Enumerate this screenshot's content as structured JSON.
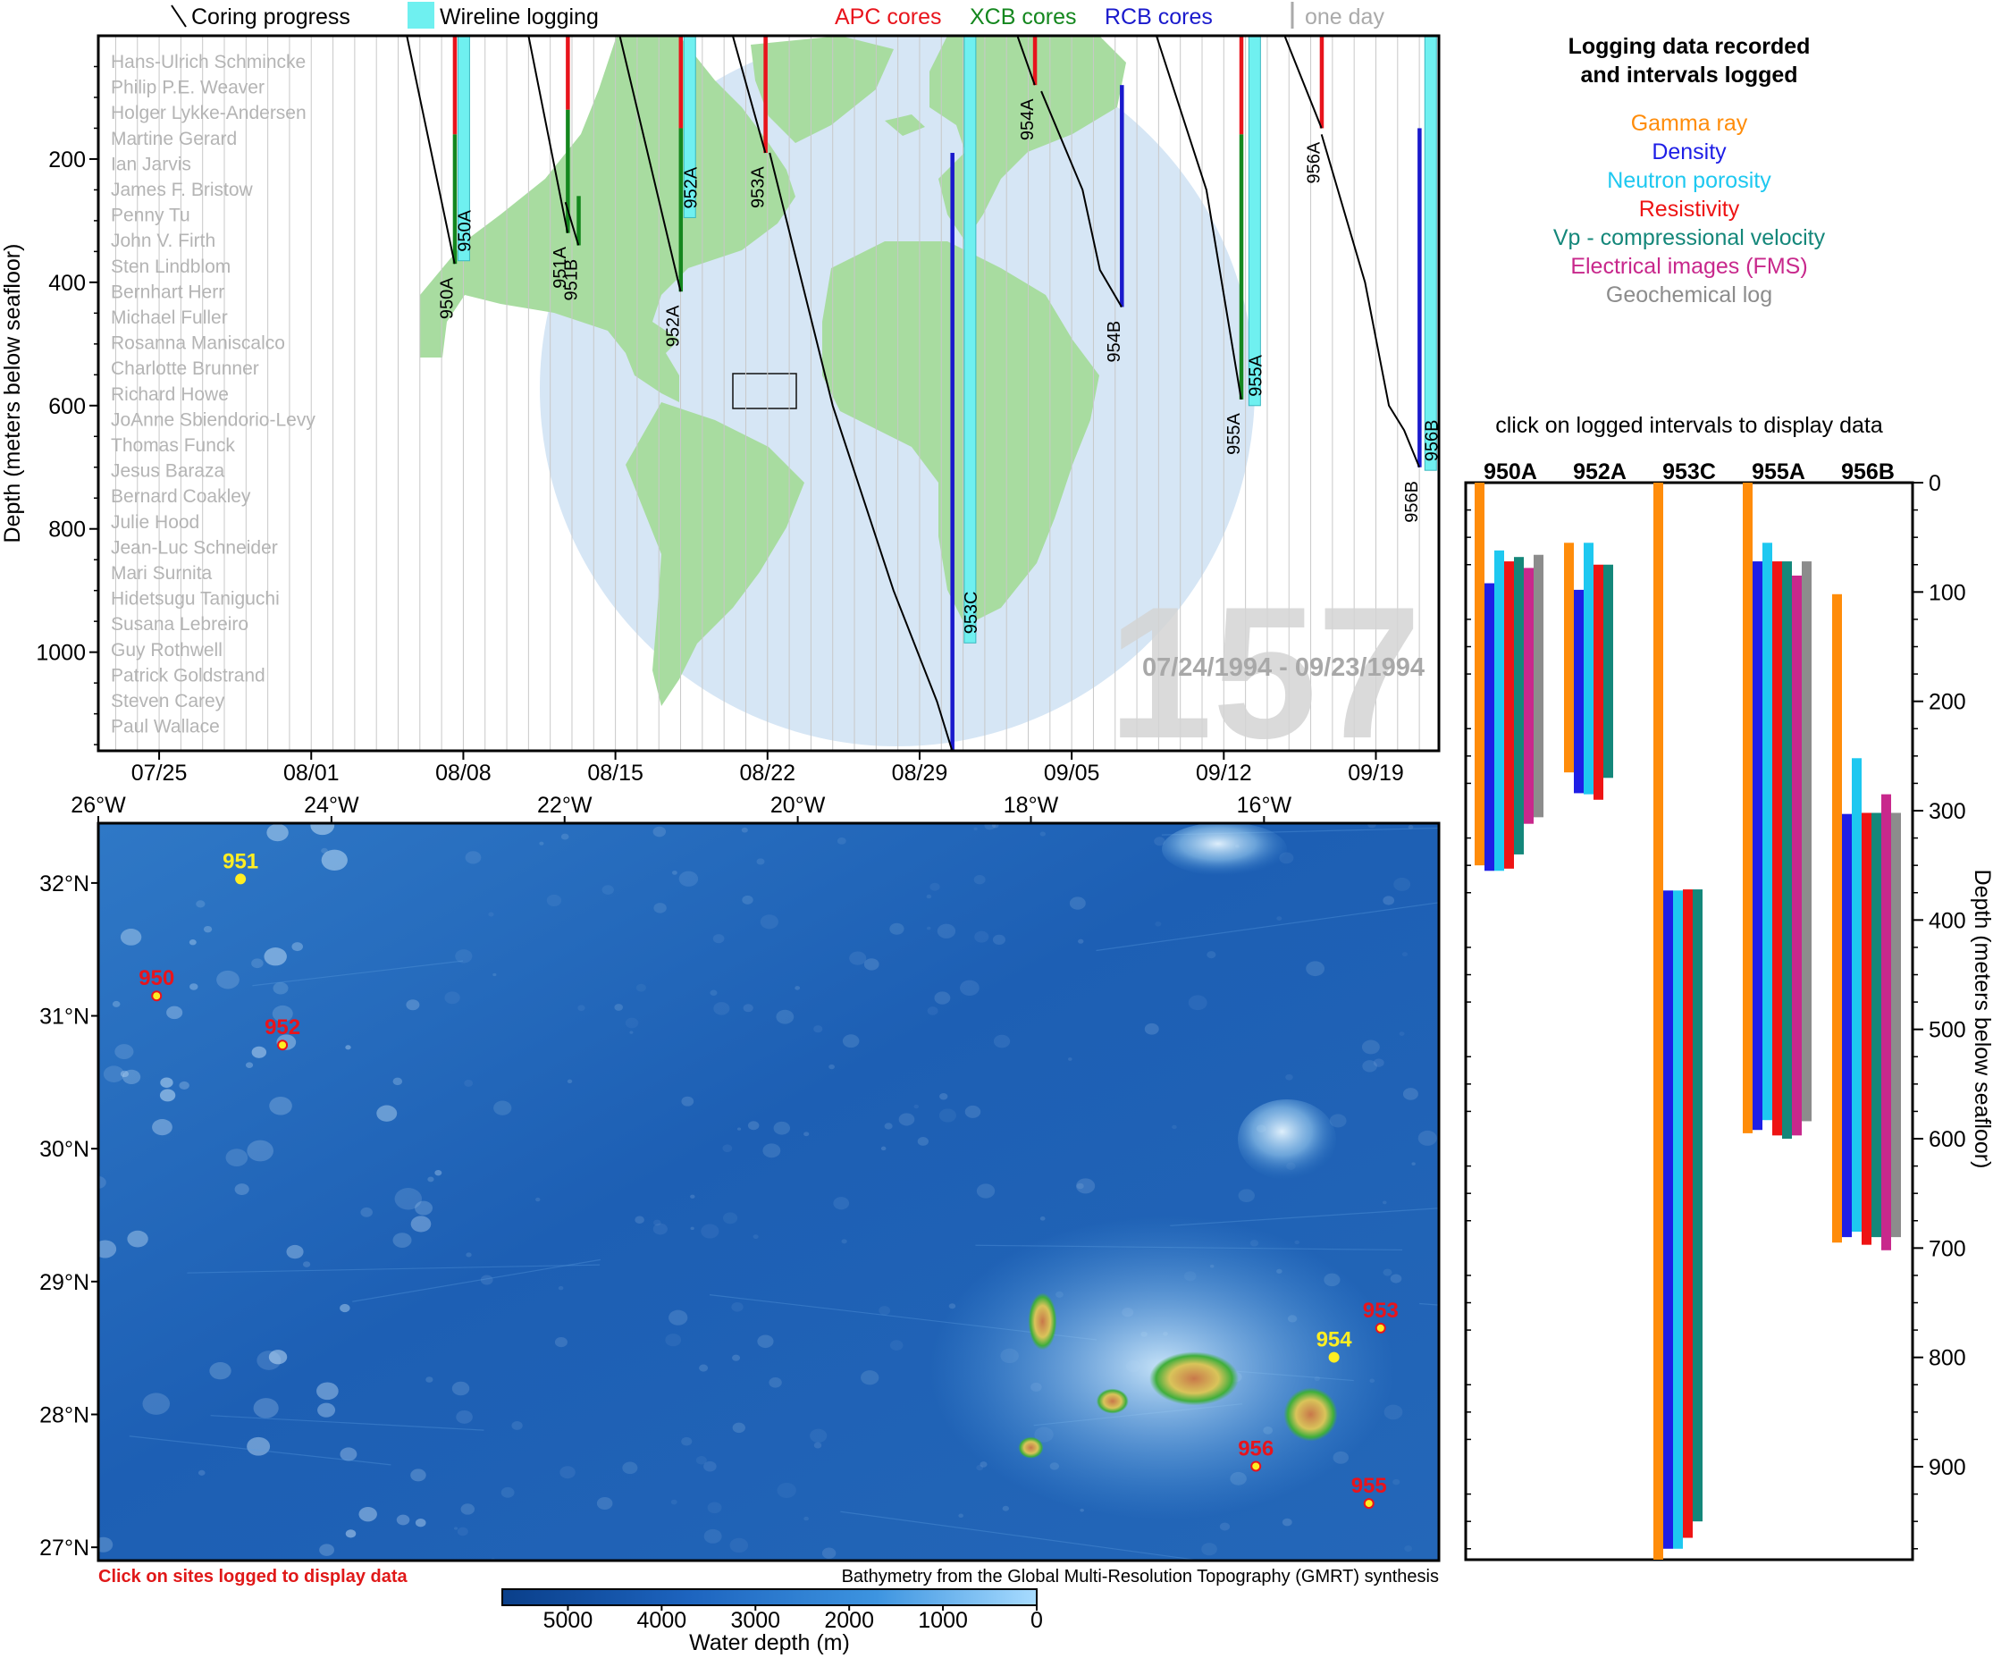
{
  "legend": {
    "coring_progress": "Coring progress",
    "wireline_logging": "Wireline logging",
    "apc": "APC cores",
    "xcb": "XCB cores",
    "rcb": "RCB cores",
    "one_day": "one day"
  },
  "colors": {
    "apc": "#e8141c",
    "xcb": "#14871e",
    "rcb": "#1a1acc",
    "wireline": "#6ff0f0",
    "land": "#a8dca0",
    "ocean_globe": "#d6e6f5",
    "gamma": "#ff8c0a",
    "density": "#1e1ee6",
    "neutron": "#1ec8f0",
    "resistivity": "#ee1414",
    "vp": "#14877a",
    "fms": "#c8288c",
    "geochem": "#8c8c8c"
  },
  "expedition": {
    "number": "157",
    "dates": "07/24/1994 - 09/23/1994",
    "scientists": [
      "Hans-Ulrich Schmincke",
      "Philip P.E. Weaver",
      "Holger Lykke-Andersen",
      "Martine Gerard",
      "Ian Jarvis",
      "James F. Bristow",
      "Penny Tu",
      "John V. Firth",
      "Sten Lindblom",
      "Bernhart Herr",
      "Michael Fuller",
      "Rosanna Maniscalco",
      "Charlotte Brunner",
      "Richard Howe",
      "JoAnne Sbiendorio-Levy",
      "Thomas Funck",
      "Jesus Baraza",
      "Bernard Coakley",
      "Julie Hood",
      "Jean-Luc Schneider",
      "Mari Surnita",
      "Hidetsugu Taniguchi",
      "Susana Lebreiro",
      "Guy Rothwell",
      "Patrick Goldstrand",
      "Steven Carey",
      "Paul Wallace"
    ]
  },
  "chart_data": [
    {
      "type": "line",
      "id": "coring-timeline",
      "ylabel": "Depth (meters below seafloor)",
      "ylim": [
        1160,
        0
      ],
      "y_ticks": [
        200,
        400,
        600,
        800,
        1000
      ],
      "x_ticks": [
        "07/25",
        "08/01",
        "08/08",
        "08/15",
        "08/22",
        "08/29",
        "09/05",
        "09/12",
        "09/19"
      ],
      "x_day_range": [
        -1.8,
        59.9
      ],
      "series": [
        {
          "name": "950A",
          "x": [
            12.4,
            14.6
          ],
          "y": [
            0,
            370
          ]
        },
        {
          "name": "951A",
          "x": [
            18.0,
            19.8
          ],
          "y": [
            0,
            320
          ]
        },
        {
          "name": "951B",
          "x": [
            19.7,
            20.3
          ],
          "y": [
            270,
            340
          ]
        },
        {
          "name": "952A",
          "x": [
            22.2,
            25.0
          ],
          "y": [
            0,
            415
          ]
        },
        {
          "name": "953A",
          "x": [
            27.4,
            28.9
          ],
          "y": [
            0,
            190
          ]
        },
        {
          "name": "953C",
          "x": [
            29.1,
            32.0,
            34.8,
            36.8,
            37.5
          ],
          "y": [
            190,
            600,
            900,
            1080,
            1160
          ]
        },
        {
          "name": "954A",
          "x": [
            40.5,
            41.3
          ],
          "y": [
            0,
            80
          ]
        },
        {
          "name": "954B",
          "x": [
            41.6,
            43.5,
            44.3,
            45.3
          ],
          "y": [
            90,
            250,
            380,
            440
          ]
        },
        {
          "name": "955A",
          "x": [
            46.9,
            49.2,
            50.8
          ],
          "y": [
            0,
            250,
            590
          ]
        },
        {
          "name": "956A",
          "x": [
            52.8,
            54.5
          ],
          "y": [
            0,
            150
          ]
        },
        {
          "name": "956B",
          "x": [
            54.5,
            56.5,
            57.6,
            58.3,
            59.0
          ],
          "y": [
            160,
            400,
            600,
            640,
            700
          ]
        }
      ],
      "core_bars": [
        {
          "label": "950A",
          "day": 14.6,
          "segments": [
            {
              "type": "apc",
              "from": 0,
              "to": 160
            },
            {
              "type": "xcb",
              "from": 160,
              "to": 370
            }
          ]
        },
        {
          "label": "951A",
          "day": 19.8,
          "segments": [
            {
              "type": "apc",
              "from": 0,
              "to": 120
            },
            {
              "type": "xcb",
              "from": 120,
              "to": 320
            }
          ]
        },
        {
          "label": "951B",
          "day": 20.3,
          "segments": [
            {
              "type": "xcb",
              "from": 260,
              "to": 340
            }
          ]
        },
        {
          "label": "952A",
          "day": 25.0,
          "segments": [
            {
              "type": "apc",
              "from": 0,
              "to": 150
            },
            {
              "type": "xcb",
              "from": 150,
              "to": 415
            }
          ]
        },
        {
          "label": "953A",
          "day": 28.9,
          "segments": [
            {
              "type": "apc",
              "from": 0,
              "to": 190
            }
          ]
        },
        {
          "label": "953C",
          "day": 37.5,
          "segments": [
            {
              "type": "rcb",
              "from": 190,
              "to": 1160
            }
          ]
        },
        {
          "label": "954A",
          "day": 41.3,
          "segments": [
            {
              "type": "apc",
              "from": 0,
              "to": 80
            }
          ]
        },
        {
          "label": "954B",
          "day": 45.3,
          "segments": [
            {
              "type": "rcb",
              "from": 80,
              "to": 440
            }
          ]
        },
        {
          "label": "955A",
          "day": 50.8,
          "segments": [
            {
              "type": "apc",
              "from": 0,
              "to": 160
            },
            {
              "type": "xcb",
              "from": 160,
              "to": 590
            }
          ]
        },
        {
          "label": "956A",
          "day": 54.5,
          "segments": [
            {
              "type": "apc",
              "from": 0,
              "to": 150
            }
          ]
        },
        {
          "label": "956B",
          "day": 59.0,
          "segments": [
            {
              "type": "rcb",
              "from": 150,
              "to": 700
            }
          ]
        }
      ],
      "wireline_bars": [
        {
          "label": "950A",
          "day": 15.0,
          "from": 0,
          "to": 365
        },
        {
          "label": "952A",
          "day": 25.4,
          "from": 0,
          "to": 295
        },
        {
          "label": "953C",
          "day": 38.3,
          "from": 0,
          "to": 985
        },
        {
          "label": "955A",
          "day": 51.4,
          "from": 0,
          "to": 600
        },
        {
          "label": "956B",
          "day": 59.5,
          "from": 0,
          "to": 705
        }
      ]
    },
    {
      "type": "bar",
      "id": "logged-intervals",
      "title": "Logging data recorded\nand intervals logged",
      "legend": [
        "Gamma ray",
        "Density",
        "Neutron porosity",
        "Resistivity",
        "Vp - compressional velocity",
        "Electrical images (FMS)",
        "Geochemical log"
      ],
      "hint": "click on logged intervals to display data",
      "ylabel": "Depth (meters below seafloor)",
      "ylim": [
        0,
        985
      ],
      "y_ticks": [
        0,
        100,
        200,
        300,
        400,
        500,
        600,
        700,
        800,
        900
      ],
      "holes": [
        {
          "name": "950A",
          "logs": [
            {
              "log": "gamma",
              "top": 0,
              "bottom": 350
            },
            {
              "log": "density",
              "top": 92,
              "bottom": 355
            },
            {
              "log": "neutron",
              "top": 62,
              "bottom": 355
            },
            {
              "log": "resistivity",
              "top": 72,
              "bottom": 353
            },
            {
              "log": "vp",
              "top": 68,
              "bottom": 340
            },
            {
              "log": "fms",
              "top": 78,
              "bottom": 312
            },
            {
              "log": "geochem",
              "top": 66,
              "bottom": 306
            }
          ]
        },
        {
          "name": "952A",
          "logs": [
            {
              "log": "gamma",
              "top": 55,
              "bottom": 265
            },
            {
              "log": "density",
              "top": 98,
              "bottom": 284
            },
            {
              "log": "neutron",
              "top": 55,
              "bottom": 285
            },
            {
              "log": "resistivity",
              "top": 75,
              "bottom": 290
            },
            {
              "log": "vp",
              "top": 75,
              "bottom": 270
            }
          ]
        },
        {
          "name": "953C",
          "logs": [
            {
              "log": "gamma",
              "top": 0,
              "bottom": 985
            },
            {
              "log": "density",
              "top": 373,
              "bottom": 975
            },
            {
              "log": "neutron",
              "top": 373,
              "bottom": 975
            },
            {
              "log": "resistivity",
              "top": 372,
              "bottom": 965
            },
            {
              "log": "vp",
              "top": 372,
              "bottom": 950
            }
          ]
        },
        {
          "name": "955A",
          "logs": [
            {
              "log": "gamma",
              "top": 0,
              "bottom": 595
            },
            {
              "log": "density",
              "top": 72,
              "bottom": 592
            },
            {
              "log": "neutron",
              "top": 55,
              "bottom": 583
            },
            {
              "log": "resistivity",
              "top": 72,
              "bottom": 597
            },
            {
              "log": "vp",
              "top": 72,
              "bottom": 600
            },
            {
              "log": "fms",
              "top": 85,
              "bottom": 597
            },
            {
              "log": "geochem",
              "top": 72,
              "bottom": 584
            }
          ]
        },
        {
          "name": "956B",
          "logs": [
            {
              "log": "gamma",
              "top": 102,
              "bottom": 695
            },
            {
              "log": "density",
              "top": 303,
              "bottom": 690
            },
            {
              "log": "neutron",
              "top": 252,
              "bottom": 685
            },
            {
              "log": "resistivity",
              "top": 302,
              "bottom": 697
            },
            {
              "log": "vp",
              "top": 302,
              "bottom": 690
            },
            {
              "log": "fms",
              "top": 285,
              "bottom": 702
            },
            {
              "log": "geochem",
              "top": 302,
              "bottom": 690
            }
          ]
        }
      ]
    },
    {
      "type": "scatter",
      "id": "site-map",
      "x_ticks": [
        "26°W",
        "24°W",
        "22°W",
        "20°W",
        "18°W",
        "16°W"
      ],
      "y_ticks": [
        "32°N",
        "31°N",
        "30°N",
        "29°N",
        "28°N",
        "27°N"
      ],
      "xlim": [
        -26,
        -14.5
      ],
      "ylim": [
        26.9,
        32.45
      ],
      "sites": [
        {
          "name": "951",
          "lon": -24.78,
          "lat": 32.03,
          "logged": false
        },
        {
          "name": "950",
          "lon": -25.5,
          "lat": 31.15,
          "logged": true
        },
        {
          "name": "952",
          "lon": -24.42,
          "lat": 30.78,
          "logged": true
        },
        {
          "name": "953",
          "lon": -15.0,
          "lat": 28.65,
          "logged": true
        },
        {
          "name": "954",
          "lon": -15.4,
          "lat": 28.43,
          "logged": false
        },
        {
          "name": "956",
          "lon": -16.07,
          "lat": 27.61,
          "logged": true
        },
        {
          "name": "955",
          "lon": -15.1,
          "lat": 27.33,
          "logged": true
        }
      ],
      "islands": [
        {
          "lon": -17.9,
          "lat": 28.7
        },
        {
          "lon": -17.3,
          "lat": 28.1
        },
        {
          "lon": -18.0,
          "lat": 27.75
        },
        {
          "lon": -16.6,
          "lat": 28.27
        },
        {
          "lon": -15.6,
          "lat": 28.0
        }
      ],
      "instruction": "Click on sites logged to display data",
      "credit": "Bathymetry from the Global Multi-Resolution Topography (GMRT) synthesis",
      "colorbar": {
        "label": "Water depth (m)",
        "ticks": [
          5000,
          4000,
          3000,
          2000,
          1000,
          0
        ],
        "range": [
          5700,
          0
        ]
      }
    }
  ]
}
